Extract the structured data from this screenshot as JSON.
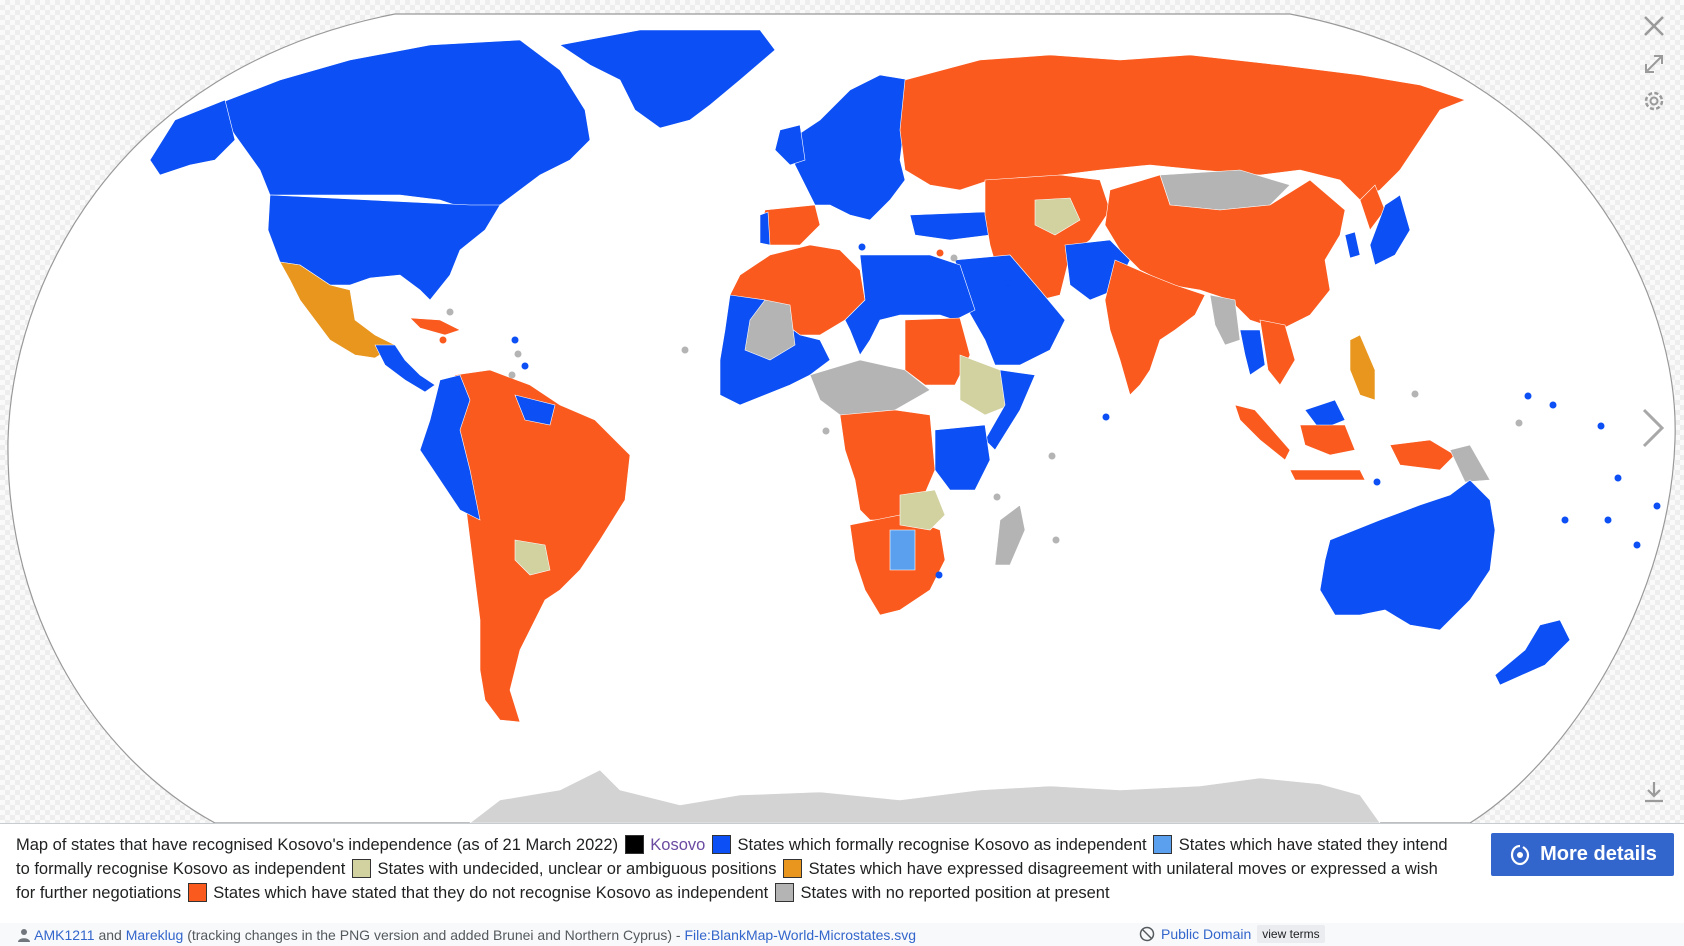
{
  "map": {
    "colors": {
      "ocean": "#ffffff",
      "kosovo": "#000000",
      "recognise": "#0b4ff5",
      "intend": "#5aa0ee",
      "undecided": "#d2d1a0",
      "disagreement": "#e8961e",
      "not_recognise": "#fa5a1e",
      "no_position": "#b4b4b4",
      "antarctica": "#d3d3d3"
    }
  },
  "controls": {
    "close_icon": "close-icon",
    "expand_icon": "expand-icon",
    "settings_icon": "gear-icon",
    "next_icon": "chevron-right-icon",
    "download_icon": "download-icon"
  },
  "caption": {
    "intro": "Map of states that have recognised Kosovo's independence (as of 21 March 2022)",
    "kosovo_link": "Kosovo",
    "legend": [
      {
        "key": "recognise",
        "label": "States which formally recognise Kosovo as independent"
      },
      {
        "key": "intend",
        "label": "States which have stated they intend to formally recognise Kosovo as independent"
      },
      {
        "key": "undecided",
        "label": "States with undecided, unclear or ambiguous positions"
      },
      {
        "key": "disagreement",
        "label": "States which have expressed disagreement with unilateral moves or expressed a wish for further negotiations"
      },
      {
        "key": "not_recognise",
        "label": "States which have stated that they do not recognise Kosovo as independent"
      },
      {
        "key": "no_position",
        "label": "States with no reported position at present"
      }
    ]
  },
  "more_details": {
    "label": "More details"
  },
  "credit": {
    "author1": "AMK1211",
    "and": "and",
    "author2": "Mareklug",
    "note": "(tracking changes in the PNG version and added Brunei and Northern Cyprus) -",
    "file": "File:BlankMap-World-Microstates.svg",
    "license": "Public Domain",
    "view_terms": "view terms"
  }
}
